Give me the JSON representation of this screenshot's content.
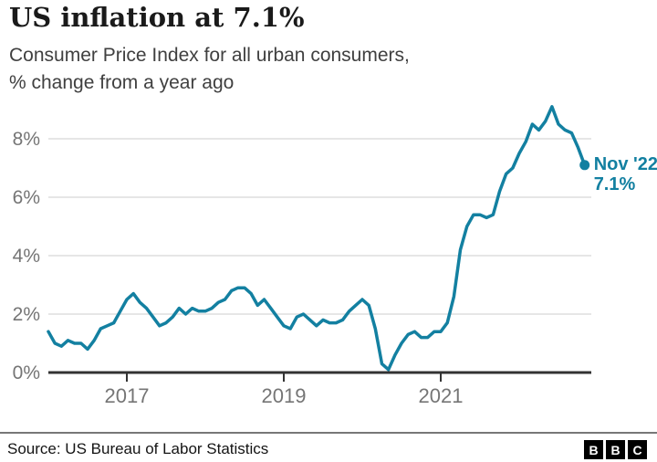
{
  "header": {
    "title": "US inflation at 7.1%",
    "subtitle_line1": "Consumer Price Index for all urban consumers,",
    "subtitle_line2": "% change from a year ago"
  },
  "chart_data": {
    "type": "line",
    "title": "US inflation at 7.1%",
    "subtitle": "Consumer Price Index for all urban consumers, % change from a year ago",
    "x_range": [
      "Jan 2016",
      "Nov 2022"
    ],
    "frequency": "monthly",
    "values": [
      1.4,
      1.0,
      0.9,
      1.1,
      1.0,
      1.0,
      0.8,
      1.1,
      1.5,
      1.6,
      1.7,
      2.1,
      2.5,
      2.7,
      2.4,
      2.2,
      1.9,
      1.6,
      1.7,
      1.9,
      2.2,
      2.0,
      2.2,
      2.1,
      2.1,
      2.2,
      2.4,
      2.5,
      2.8,
      2.9,
      2.9,
      2.7,
      2.3,
      2.5,
      2.2,
      1.9,
      1.6,
      1.5,
      1.9,
      2.0,
      1.8,
      1.6,
      1.8,
      1.7,
      1.7,
      1.8,
      2.1,
      2.3,
      2.5,
      2.3,
      1.5,
      0.3,
      0.1,
      0.6,
      1.0,
      1.3,
      1.4,
      1.2,
      1.2,
      1.4,
      1.4,
      1.7,
      2.6,
      4.2,
      5.0,
      5.4,
      5.4,
      5.3,
      5.4,
      6.2,
      6.8,
      7.0,
      7.5,
      7.9,
      8.5,
      8.3,
      8.6,
      9.1,
      8.5,
      8.3,
      8.2,
      7.7,
      7.1
    ],
    "ylim": [
      0,
      9.5
    ],
    "y_ticks": [
      {
        "value": 0,
        "label": "0%"
      },
      {
        "value": 2,
        "label": "2%"
      },
      {
        "value": 4,
        "label": "4%"
      },
      {
        "value": 6,
        "label": "6%"
      },
      {
        "value": 8,
        "label": "8%"
      }
    ],
    "x_ticks": [
      {
        "month_index": 12,
        "label": "2017"
      },
      {
        "month_index": 36,
        "label": "2019"
      },
      {
        "month_index": 60,
        "label": "2021"
      }
    ],
    "grid": true,
    "legend": "none",
    "line_color": "#1380A1",
    "annotation": {
      "line1": "Nov '22",
      "line2": "7.1%"
    }
  },
  "footer": {
    "source": "Source: US Bureau of Labor Statistics",
    "logo_letters": [
      "B",
      "B",
      "C"
    ]
  }
}
